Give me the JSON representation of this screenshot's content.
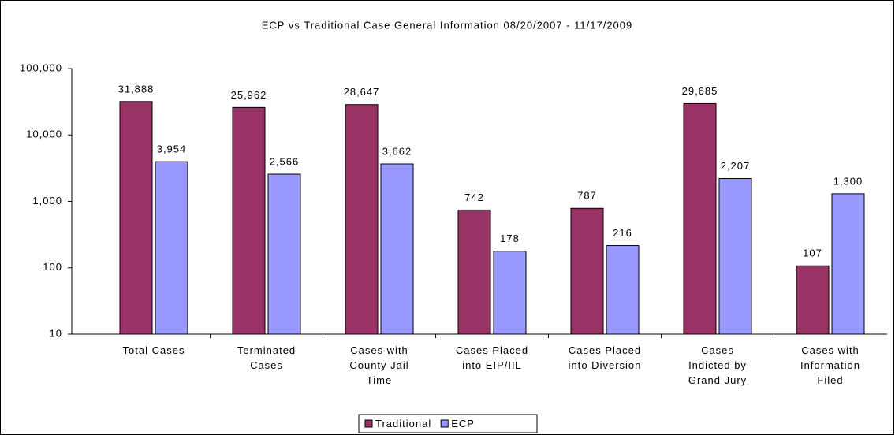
{
  "chart_data": {
    "type": "bar",
    "title": "ECP vs Traditional Case General Information 08/20/2007 - 11/17/2009",
    "categories": [
      "Total Cases",
      "Terminated\nCases",
      "Cases with\nCounty Jail\nTime",
      "Cases Placed\ninto EIP/IIL",
      "Cases Placed\ninto Diversion",
      "Cases\nIndicted by\nGrand Jury",
      "Cases with\nInformation\nFiled"
    ],
    "series": [
      {
        "name": "Traditional",
        "color": "#993366",
        "values": [
          31888,
          25962,
          28647,
          742,
          787,
          29685,
          107
        ],
        "value_labels": [
          "31,888",
          "25,962",
          "28,647",
          "742",
          "787",
          "29,685",
          "107"
        ]
      },
      {
        "name": "ECP",
        "color": "#9999ff",
        "values": [
          3954,
          2566,
          3662,
          178,
          216,
          2207,
          1300
        ],
        "value_labels": [
          "3,954",
          "2,566",
          "3,662",
          "178",
          "216",
          "2,207",
          "1,300"
        ]
      }
    ],
    "log_scale": true,
    "ylim": [
      10,
      100000
    ],
    "yticks": [
      10,
      100,
      {
        "value": 1000,
        "label": "1,000"
      },
      {
        "value": 10000,
        "label": "10,000"
      },
      {
        "value": 100000,
        "label": "100,000"
      }
    ],
    "grid": false,
    "legend": "bottom"
  }
}
